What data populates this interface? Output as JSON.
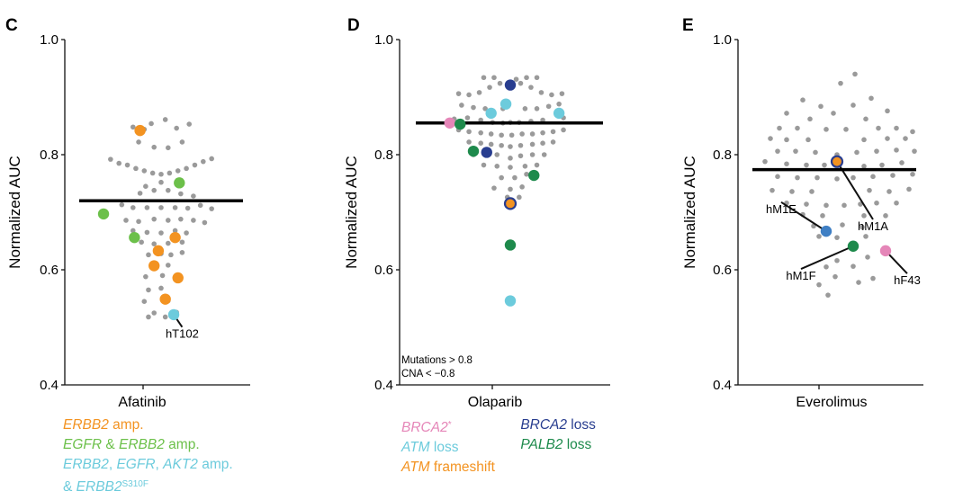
{
  "colors": {
    "gray": "#9a9a9a",
    "orange": "#f39321",
    "green": "#6cc04a",
    "cyan": "#6ccbdc",
    "pink": "#e586b8",
    "navy": "#283d8f",
    "darkgreen": "#1e8a4c",
    "blue": "#3f7fc4"
  },
  "chart_data": [
    {
      "type": "scatter",
      "panel": "C",
      "xlabel": "Afatinib",
      "ylabel": "Normalized AUC",
      "ylim": [
        0.4,
        1.0
      ],
      "yticks": [
        "0.4",
        "0.6",
        "0.8",
        "1.0"
      ],
      "median": 0.72,
      "gray_points": [
        [
          -0.72,
          0.792
        ],
        [
          -0.6,
          0.785
        ],
        [
          -0.48,
          0.782
        ],
        [
          -0.36,
          0.776
        ],
        [
          -0.24,
          0.772
        ],
        [
          -0.12,
          0.768
        ],
        [
          0.0,
          0.766
        ],
        [
          0.12,
          0.768
        ],
        [
          0.24,
          0.772
        ],
        [
          0.36,
          0.776
        ],
        [
          0.48,
          0.782
        ],
        [
          0.6,
          0.788
        ],
        [
          0.72,
          0.793
        ],
        [
          -0.4,
          0.848
        ],
        [
          -0.24,
          0.844
        ],
        [
          -0.14,
          0.854
        ],
        [
          0.06,
          0.861
        ],
        [
          0.22,
          0.846
        ],
        [
          0.4,
          0.853
        ],
        [
          -0.32,
          0.822
        ],
        [
          -0.1,
          0.813
        ],
        [
          0.1,
          0.812
        ],
        [
          0.3,
          0.822
        ],
        [
          -0.3,
          0.733
        ],
        [
          -0.1,
          0.738
        ],
        [
          0.1,
          0.738
        ],
        [
          0.28,
          0.732
        ],
        [
          0.46,
          0.728
        ],
        [
          -0.22,
          0.745
        ],
        [
          0.0,
          0.752
        ],
        [
          -0.56,
          0.713
        ],
        [
          -0.4,
          0.708
        ],
        [
          -0.2,
          0.708
        ],
        [
          0.0,
          0.708
        ],
        [
          0.2,
          0.708
        ],
        [
          0.38,
          0.707
        ],
        [
          0.56,
          0.712
        ],
        [
          0.72,
          0.706
        ],
        [
          -0.5,
          0.686
        ],
        [
          -0.32,
          0.684
        ],
        [
          -0.1,
          0.688
        ],
        [
          0.1,
          0.686
        ],
        [
          0.28,
          0.688
        ],
        [
          0.46,
          0.686
        ],
        [
          0.62,
          0.682
        ],
        [
          -0.4,
          0.668
        ],
        [
          -0.2,
          0.665
        ],
        [
          0.0,
          0.664
        ],
        [
          0.2,
          0.668
        ],
        [
          0.36,
          0.664
        ],
        [
          -0.28,
          0.648
        ],
        [
          -0.1,
          0.645
        ],
        [
          0.1,
          0.646
        ],
        [
          0.3,
          0.648
        ],
        [
          -0.18,
          0.626
        ],
        [
          0.0,
          0.628
        ],
        [
          0.14,
          0.626
        ],
        [
          0.3,
          0.63
        ],
        [
          -0.12,
          0.608
        ],
        [
          0.1,
          0.608
        ],
        [
          -0.22,
          0.588
        ],
        [
          0.02,
          0.59
        ],
        [
          -0.18,
          0.565
        ],
        [
          0.0,
          0.568
        ],
        [
          -0.24,
          0.545
        ],
        [
          0.1,
          0.546
        ],
        [
          -0.1,
          0.525
        ],
        [
          0.22,
          0.526
        ],
        [
          -0.18,
          0.518
        ],
        [
          0.06,
          0.518
        ]
      ],
      "highlights": [
        {
          "x": -0.3,
          "y": 0.842,
          "color": "orange"
        },
        {
          "x": 0.26,
          "y": 0.751,
          "color": "green"
        },
        {
          "x": -0.82,
          "y": 0.697,
          "color": "green"
        },
        {
          "x": -0.38,
          "y": 0.656,
          "color": "green"
        },
        {
          "x": -0.04,
          "y": 0.633,
          "color": "orange"
        },
        {
          "x": 0.2,
          "y": 0.656,
          "color": "orange"
        },
        {
          "x": -0.1,
          "y": 0.607,
          "color": "orange"
        },
        {
          "x": 0.24,
          "y": 0.586,
          "color": "orange"
        },
        {
          "x": 0.06,
          "y": 0.549,
          "color": "orange"
        },
        {
          "x": 0.18,
          "y": 0.522,
          "color": "cyan"
        }
      ],
      "annotations": [
        {
          "text": "hT102",
          "x": 0.18,
          "y": 0.522,
          "tx": 0.3,
          "ty": 0.488
        }
      ]
    },
    {
      "type": "scatter",
      "panel": "D",
      "xlabel": "Olaparib",
      "ylabel": "Normalized AUC",
      "ylim": [
        0.4,
        1.0
      ],
      "yticks": [
        "0.4",
        "0.6",
        "0.8",
        "1.0"
      ],
      "median": 0.855,
      "note": [
        "Mutations > 0.8",
        "CNA < −0.8"
      ],
      "gray_points": [
        [
          -0.7,
          0.906
        ],
        [
          -0.56,
          0.904
        ],
        [
          -0.42,
          0.908
        ],
        [
          -0.28,
          0.917
        ],
        [
          -0.14,
          0.924
        ],
        [
          0.0,
          0.926
        ],
        [
          0.14,
          0.924
        ],
        [
          0.28,
          0.917
        ],
        [
          0.42,
          0.908
        ],
        [
          0.56,
          0.904
        ],
        [
          0.7,
          0.906
        ],
        [
          -0.36,
          0.934
        ],
        [
          -0.22,
          0.934
        ],
        [
          0.08,
          0.931
        ],
        [
          0.22,
          0.934
        ],
        [
          0.36,
          0.934
        ],
        [
          -0.66,
          0.886
        ],
        [
          -0.5,
          0.882
        ],
        [
          -0.34,
          0.88
        ],
        [
          -0.1,
          0.88
        ],
        [
          0.2,
          0.88
        ],
        [
          0.36,
          0.88
        ],
        [
          0.52,
          0.884
        ],
        [
          0.66,
          0.888
        ],
        [
          -0.76,
          0.862
        ],
        [
          -0.58,
          0.864
        ],
        [
          -0.4,
          0.86
        ],
        [
          -0.24,
          0.856
        ],
        [
          -0.1,
          0.855
        ],
        [
          0.0,
          0.856
        ],
        [
          0.12,
          0.856
        ],
        [
          0.28,
          0.858
        ],
        [
          0.44,
          0.86
        ],
        [
          0.72,
          0.864
        ],
        [
          -0.7,
          0.843
        ],
        [
          -0.56,
          0.84
        ],
        [
          -0.4,
          0.838
        ],
        [
          -0.26,
          0.836
        ],
        [
          -0.12,
          0.834
        ],
        [
          0.02,
          0.834
        ],
        [
          0.16,
          0.836
        ],
        [
          0.3,
          0.836
        ],
        [
          0.44,
          0.838
        ],
        [
          0.58,
          0.84
        ],
        [
          0.72,
          0.843
        ],
        [
          -0.56,
          0.822
        ],
        [
          -0.4,
          0.82
        ],
        [
          -0.26,
          0.818
        ],
        [
          -0.12,
          0.816
        ],
        [
          0.0,
          0.814
        ],
        [
          0.14,
          0.816
        ],
        [
          0.3,
          0.818
        ],
        [
          0.44,
          0.82
        ],
        [
          0.58,
          0.822
        ],
        [
          -0.5,
          0.8
        ],
        [
          -0.18,
          0.8
        ],
        [
          0.0,
          0.794
        ],
        [
          0.14,
          0.798
        ],
        [
          0.3,
          0.8
        ],
        [
          0.46,
          0.8
        ],
        [
          -0.36,
          0.782
        ],
        [
          -0.18,
          0.78
        ],
        [
          0.0,
          0.778
        ],
        [
          0.2,
          0.78
        ],
        [
          0.36,
          0.782
        ],
        [
          -0.12,
          0.76
        ],
        [
          0.06,
          0.76
        ],
        [
          0.22,
          0.766
        ],
        [
          -0.22,
          0.742
        ],
        [
          0.0,
          0.74
        ],
        [
          0.16,
          0.744
        ],
        [
          -0.04,
          0.726
        ],
        [
          0.12,
          0.726
        ]
      ],
      "highlights": [
        {
          "x": 0.0,
          "y": 0.921,
          "color": "navy"
        },
        {
          "x": -0.26,
          "y": 0.872,
          "color": "cyan"
        },
        {
          "x": -0.06,
          "y": 0.888,
          "color": "cyan"
        },
        {
          "x": 0.66,
          "y": 0.872,
          "color": "cyan"
        },
        {
          "x": -0.82,
          "y": 0.855,
          "color": "pink"
        },
        {
          "x": -0.68,
          "y": 0.853,
          "color": "darkgreen"
        },
        {
          "x": -0.5,
          "y": 0.806,
          "color": "darkgreen"
        },
        {
          "x": -0.32,
          "y": 0.804,
          "color": "navy"
        },
        {
          "x": 0.32,
          "y": 0.764,
          "color": "darkgreen"
        },
        {
          "x": 0.0,
          "y": 0.715,
          "color": "orange",
          "ring": "navy"
        },
        {
          "x": 0.0,
          "y": 0.643,
          "color": "darkgreen"
        },
        {
          "x": 0.0,
          "y": 0.546,
          "color": "cyan"
        }
      ],
      "annotations": []
    },
    {
      "type": "scatter",
      "panel": "E",
      "xlabel": "Everolimus",
      "ylabel": "Normalized AUC",
      "ylim": [
        0.4,
        1.0
      ],
      "yticks": [
        "0.4",
        "0.6",
        "0.8",
        "1.0"
      ],
      "median": 0.774,
      "gray_points": [
        [
          0.2,
          0.94
        ],
        [
          0.04,
          0.924
        ],
        [
          -0.38,
          0.895
        ],
        [
          0.38,
          0.898
        ],
        [
          -0.18,
          0.884
        ],
        [
          0.18,
          0.886
        ],
        [
          -0.56,
          0.872
        ],
        [
          0.56,
          0.876
        ],
        [
          -0.04,
          0.872
        ],
        [
          -0.3,
          0.862
        ],
        [
          0.32,
          0.862
        ],
        [
          -0.64,
          0.846
        ],
        [
          -0.44,
          0.846
        ],
        [
          -0.12,
          0.844
        ],
        [
          0.1,
          0.844
        ],
        [
          0.46,
          0.846
        ],
        [
          0.66,
          0.846
        ],
        [
          0.84,
          0.84
        ],
        [
          -0.74,
          0.828
        ],
        [
          -0.56,
          0.826
        ],
        [
          -0.32,
          0.826
        ],
        [
          0.3,
          0.826
        ],
        [
          0.56,
          0.828
        ],
        [
          0.76,
          0.828
        ],
        [
          -0.66,
          0.806
        ],
        [
          -0.46,
          0.806
        ],
        [
          -0.24,
          0.804
        ],
        [
          0.0,
          0.8
        ],
        [
          0.22,
          0.804
        ],
        [
          0.44,
          0.806
        ],
        [
          0.66,
          0.808
        ],
        [
          0.86,
          0.806
        ],
        [
          -0.8,
          0.788
        ],
        [
          -0.56,
          0.784
        ],
        [
          -0.34,
          0.782
        ],
        [
          -0.14,
          0.782
        ],
        [
          0.3,
          0.78
        ],
        [
          0.5,
          0.782
        ],
        [
          0.72,
          0.786
        ],
        [
          -0.66,
          0.762
        ],
        [
          -0.44,
          0.76
        ],
        [
          -0.22,
          0.76
        ],
        [
          0.0,
          0.758
        ],
        [
          0.18,
          0.76
        ],
        [
          0.4,
          0.762
        ],
        [
          0.62,
          0.764
        ],
        [
          0.84,
          0.766
        ],
        [
          -0.72,
          0.738
        ],
        [
          -0.5,
          0.736
        ],
        [
          -0.28,
          0.736
        ],
        [
          0.36,
          0.738
        ],
        [
          0.58,
          0.736
        ],
        [
          0.8,
          0.74
        ],
        [
          -0.56,
          0.716
        ],
        [
          -0.34,
          0.714
        ],
        [
          -0.12,
          0.712
        ],
        [
          0.08,
          0.712
        ],
        [
          0.26,
          0.714
        ],
        [
          0.44,
          0.716
        ],
        [
          0.66,
          0.716
        ],
        [
          -0.38,
          0.696
        ],
        [
          -0.16,
          0.694
        ],
        [
          0.3,
          0.694
        ],
        [
          0.54,
          0.694
        ],
        [
          -0.26,
          0.676
        ],
        [
          0.06,
          0.678
        ],
        [
          0.28,
          0.674
        ],
        [
          -0.2,
          0.658
        ],
        [
          0.0,
          0.656
        ],
        [
          0.32,
          0.658
        ],
        [
          0.0,
          0.616
        ],
        [
          -0.12,
          0.605
        ],
        [
          0.18,
          0.606
        ],
        [
          0.34,
          0.622
        ],
        [
          -0.02,
          0.588
        ],
        [
          0.4,
          0.585
        ],
        [
          0.24,
          0.578
        ],
        [
          -0.2,
          0.574
        ],
        [
          -0.1,
          0.556
        ]
      ],
      "highlights": [
        {
          "x": 0.0,
          "y": 0.788,
          "color": "orange",
          "ring": "navy"
        },
        {
          "x": -0.12,
          "y": 0.667,
          "color": "blue"
        },
        {
          "x": 0.18,
          "y": 0.641,
          "color": "darkgreen"
        },
        {
          "x": 0.54,
          "y": 0.633,
          "color": "pink"
        }
      ],
      "annotations": [
        {
          "text": "hM1A",
          "x": 0.0,
          "y": 0.788,
          "tx": 0.4,
          "ty": 0.675
        },
        {
          "text": "hM1E",
          "x": -0.12,
          "y": 0.667,
          "tx": -0.62,
          "ty": 0.705
        },
        {
          "text": "hM1F",
          "x": 0.18,
          "y": 0.641,
          "tx": -0.4,
          "ty": 0.589
        },
        {
          "text": "hF43",
          "x": 0.54,
          "y": 0.633,
          "tx": 0.78,
          "ty": 0.581
        }
      ]
    }
  ],
  "legend_c": {
    "line1_gene": "ERBB2",
    "line1_rest": " amp.",
    "line2_gene1": "EGFR",
    "line2_mid": " & ",
    "line2_gene2": "ERBB2",
    "line2_rest": " amp.",
    "line3_g1": "ERBB2",
    "line3_s1": ", ",
    "line3_g2": "EGFR",
    "line3_s2": ", ",
    "line3_g3": "AKT2",
    "line3_rest": " amp.",
    "line4_pre": "& ",
    "line4_gene": "ERBB2",
    "line4_sup": "S310F"
  },
  "legend_d": {
    "brca2_gene": "BRCA2",
    "brca2_star": "*",
    "atm_gene": "ATM",
    "atm_rest": " loss",
    "atmfs_gene": "ATM",
    "atmfs_rest": " frameshift",
    "brca2loss_gene": "BRCA2",
    "brca2loss_rest": " loss",
    "palb2_gene": "PALB2",
    "palb2_rest": " loss"
  }
}
